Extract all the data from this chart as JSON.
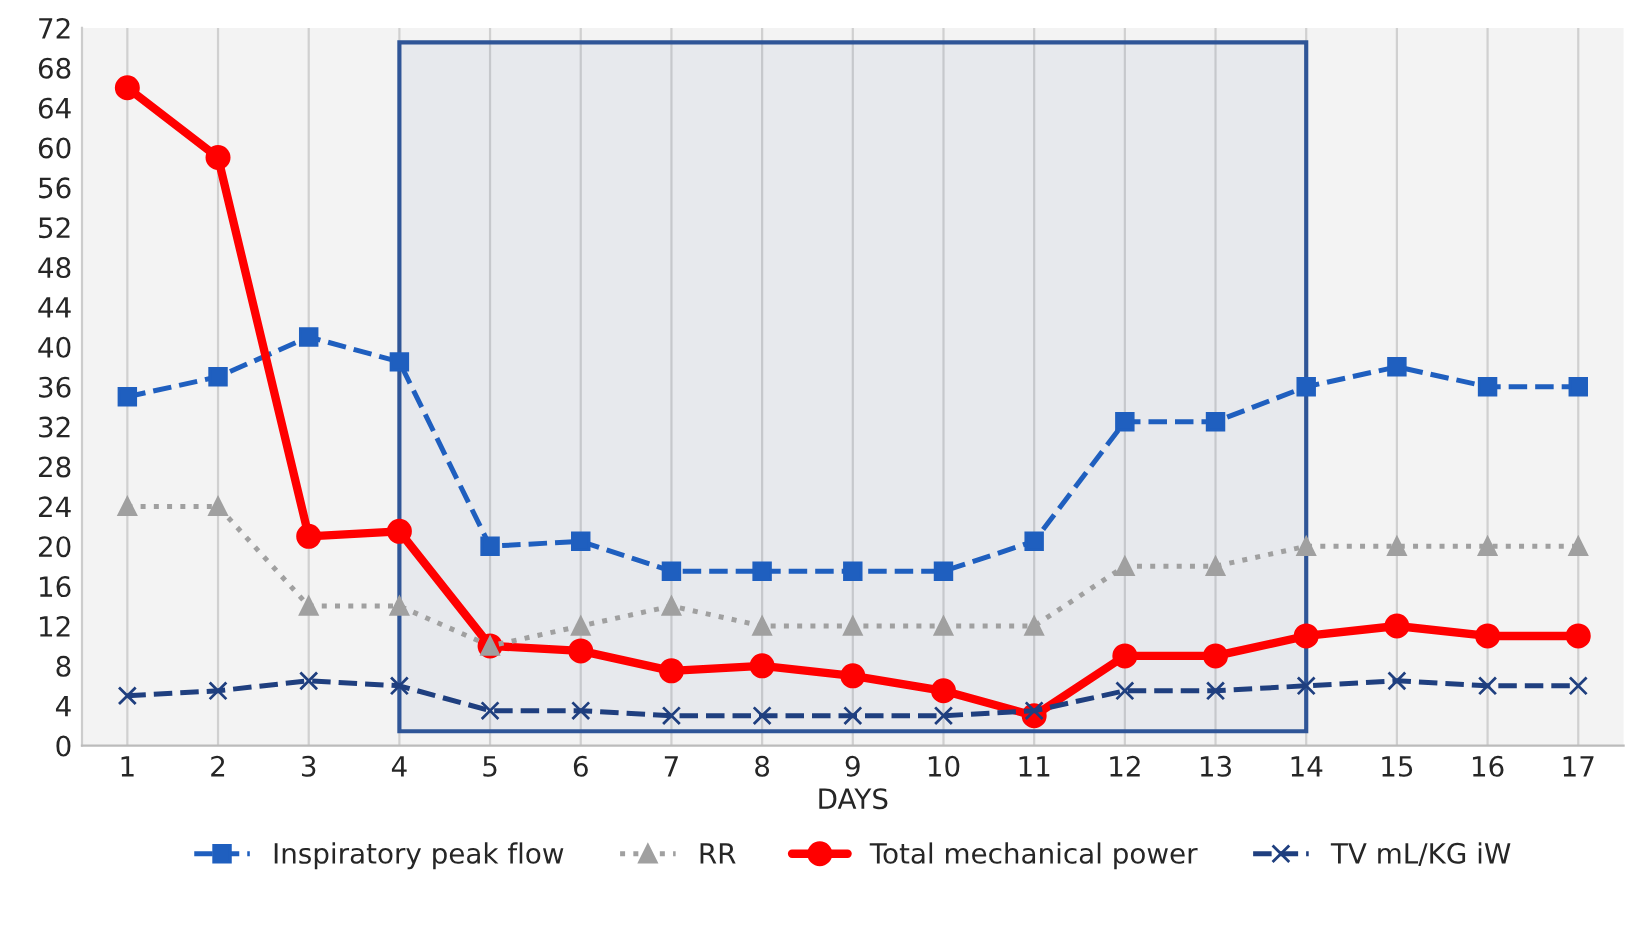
{
  "chart_data": {
    "type": "line",
    "xlabel": "DAYS",
    "categories": [
      "1",
      "2",
      "3",
      "4",
      "5",
      "6",
      "7",
      "8",
      "9",
      "10",
      "11",
      "12",
      "13",
      "14",
      "15",
      "16",
      "17"
    ],
    "series": [
      {
        "name": "Inspiratory peak flow",
        "color": "#1f5fbf",
        "marker": "square",
        "line_style": "dashed",
        "values": [
          35,
          37,
          41,
          38.5,
          20,
          20.5,
          17.5,
          17.5,
          17.5,
          17.5,
          20.5,
          32.5,
          32.5,
          36,
          38,
          36,
          36
        ]
      },
      {
        "name": "RR",
        "color": "#a0a0a0",
        "marker": "triangle",
        "line_style": "dotted",
        "values": [
          24,
          24,
          14,
          14,
          10,
          12,
          14,
          12,
          12,
          12,
          12,
          18,
          18,
          20,
          20,
          20,
          20
        ]
      },
      {
        "name": "Total mechanical power",
        "color": "#ff0000",
        "marker": "circle",
        "line_style": "solid",
        "values": [
          66,
          59,
          21,
          21.5,
          10,
          9.5,
          7.5,
          8,
          7,
          5.5,
          3,
          9,
          9,
          11,
          12,
          11,
          11
        ]
      },
      {
        "name": "TV mL/KG iW",
        "color": "#1f3f7f",
        "marker": "cross",
        "line_style": "dashed",
        "values": [
          5,
          5.5,
          6.5,
          6,
          3.5,
          3.5,
          3,
          3,
          3,
          3,
          3.5,
          5.5,
          5.5,
          6,
          6.5,
          6,
          6
        ]
      }
    ],
    "ylim": [
      0,
      72
    ],
    "yticks": [
      0,
      4,
      8,
      12,
      16,
      20,
      24,
      28,
      32,
      36,
      40,
      44,
      48,
      52,
      56,
      60,
      64,
      68,
      72
    ],
    "bands": [
      {
        "axis": "x",
        "from": "4",
        "to": "14",
        "color": "#2f5597"
      }
    ],
    "grid": "x",
    "legend": "bottom"
  }
}
